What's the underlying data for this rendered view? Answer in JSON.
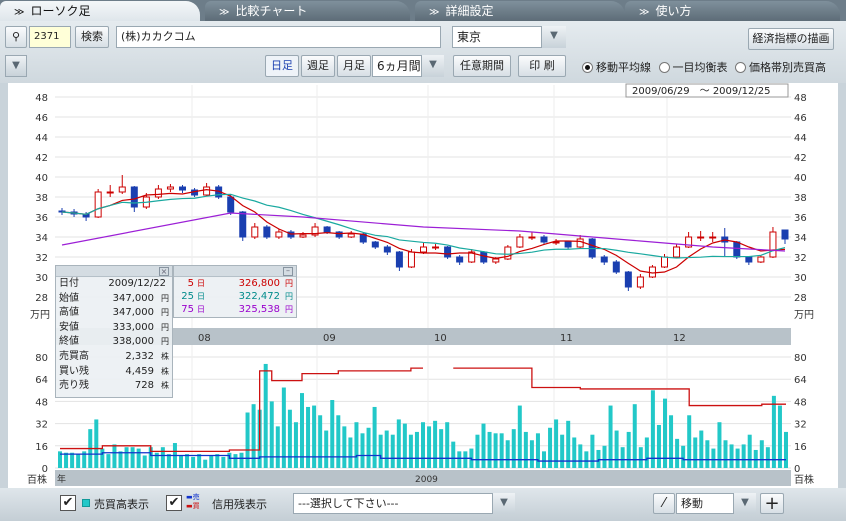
{
  "tabs": [
    {
      "label": "ローソク足",
      "active": true
    },
    {
      "label": "比較チャート"
    },
    {
      "label": "詳細設定"
    },
    {
      "label": "使い方"
    }
  ],
  "search": {
    "code": "2371",
    "button": "検索",
    "company": "(株)カカクコム",
    "market": "東京",
    "econ_button": "経済指標の描画"
  },
  "period": {
    "daily": "日足",
    "weekly": "週足",
    "monthly": "月足",
    "range": "6ヵ月間",
    "custom": "任意期間",
    "print": "印 刷"
  },
  "overlay": {
    "options": [
      "移動平均線",
      "一目均衡表",
      "価格帯別売買高"
    ],
    "selected": 0
  },
  "date_range": "2009/06/29　～ 2009/12/25",
  "price_axis": {
    "ticks": [
      48,
      46,
      44,
      42,
      40,
      38,
      36,
      34,
      32,
      30,
      28
    ],
    "unit": "万円"
  },
  "volume_axis": {
    "ticks": [
      80,
      64,
      48,
      32,
      16,
      0
    ],
    "unit": "百株"
  },
  "months": [
    "08",
    "09",
    "10",
    "11",
    "12"
  ],
  "year_label": "年",
  "year": "2009",
  "info": {
    "rows": [
      [
        "日付",
        "2009/12/22",
        ""
      ],
      [
        "始値",
        "347,000",
        "円"
      ],
      [
        "高値",
        "347,000",
        "円"
      ],
      [
        "安値",
        "333,000",
        "円"
      ],
      [
        "終値",
        "338,000",
        "円"
      ],
      [
        "売買高",
        "2,332",
        "株"
      ],
      [
        "買い残",
        "4,459",
        "株"
      ],
      [
        "売り残",
        "728",
        "株"
      ]
    ]
  },
  "ma": {
    "rows": [
      {
        "n": "5",
        "u": "日",
        "v": "326,800",
        "yen": "円",
        "color": "#cc0000"
      },
      {
        "n": "25",
        "u": "日",
        "v": "322,472",
        "yen": "円",
        "color": "#008b8b"
      },
      {
        "n": "75",
        "u": "日",
        "v": "325,538",
        "yen": "円",
        "color": "#9900cc"
      }
    ]
  },
  "bottom": {
    "volume_toggle": "売買高表示",
    "credit_toggle": "信用残表示",
    "credit_sell": "売",
    "credit_buy": "買",
    "indicator_select": "---選択して下さい---",
    "tool_select": "移動"
  },
  "colors": {
    "ma5": "#cc0000",
    "ma25": "#1aa9a0",
    "ma75": "#9c1fd6",
    "up": "#ffffff",
    "down": "#1a3fb0",
    "volume": "#22c8c8",
    "buy_credit": "#cc1111",
    "sell_credit": "#1133cc"
  },
  "chart_data": {
    "type": "candlestick",
    "candles": [
      [
        36.6,
        36.9,
        36.2,
        36.5
      ],
      [
        36.5,
        36.8,
        36.0,
        36.3
      ],
      [
        36.3,
        36.5,
        35.6,
        36.0
      ],
      [
        36.0,
        38.8,
        35.9,
        38.5
      ],
      [
        38.5,
        39.2,
        38.0,
        38.5
      ],
      [
        38.5,
        40.2,
        38.3,
        39.0
      ],
      [
        39.0,
        39.1,
        36.5,
        37.0
      ],
      [
        37.0,
        38.4,
        36.8,
        38.0
      ],
      [
        38.0,
        39.2,
        37.8,
        38.8
      ],
      [
        38.8,
        39.3,
        38.5,
        39.0
      ],
      [
        39.0,
        39.2,
        38.4,
        38.7
      ],
      [
        38.7,
        38.9,
        38.0,
        38.2
      ],
      [
        38.2,
        39.4,
        38.1,
        39.0
      ],
      [
        39.0,
        39.2,
        37.8,
        38.0
      ],
      [
        38.0,
        38.2,
        36.2,
        36.5
      ],
      [
        36.5,
        36.6,
        33.6,
        34.0
      ],
      [
        34.0,
        35.4,
        33.8,
        35.0
      ],
      [
        35.0,
        35.2,
        33.8,
        34.0
      ],
      [
        34.0,
        34.8,
        33.8,
        34.5
      ],
      [
        34.5,
        34.7,
        33.8,
        34.0
      ],
      [
        34.0,
        34.5,
        33.9,
        34.2
      ],
      [
        34.2,
        35.4,
        34.0,
        35.0
      ],
      [
        35.0,
        35.1,
        34.3,
        34.5
      ],
      [
        34.5,
        34.6,
        33.8,
        34.0
      ],
      [
        34.0,
        34.6,
        33.9,
        34.3
      ],
      [
        34.3,
        34.4,
        33.3,
        33.5
      ],
      [
        33.5,
        33.6,
        32.8,
        33.0
      ],
      [
        33.0,
        33.2,
        32.2,
        32.5
      ],
      [
        32.5,
        32.6,
        30.6,
        31.0
      ],
      [
        31.0,
        32.8,
        30.9,
        32.5
      ],
      [
        32.5,
        33.4,
        32.3,
        33.0
      ],
      [
        33.0,
        33.3,
        32.7,
        33.0
      ],
      [
        33.0,
        33.1,
        31.8,
        32.0
      ],
      [
        32.0,
        32.2,
        31.2,
        31.5
      ],
      [
        31.5,
        32.8,
        31.4,
        32.5
      ],
      [
        32.5,
        32.6,
        31.3,
        31.5
      ],
      [
        31.5,
        32.0,
        31.3,
        31.8
      ],
      [
        31.8,
        33.2,
        31.7,
        33.0
      ],
      [
        33.0,
        34.3,
        32.9,
        34.0
      ],
      [
        34.0,
        34.5,
        33.7,
        34.0
      ],
      [
        34.0,
        34.2,
        33.3,
        33.5
      ],
      [
        33.5,
        33.8,
        33.2,
        33.5
      ],
      [
        33.5,
        33.6,
        32.8,
        33.0
      ],
      [
        33.0,
        34.2,
        32.9,
        33.8
      ],
      [
        33.8,
        33.9,
        31.8,
        32.0
      ],
      [
        32.0,
        32.2,
        31.2,
        31.5
      ],
      [
        31.5,
        31.7,
        30.3,
        30.5
      ],
      [
        30.5,
        30.6,
        28.6,
        29.0
      ],
      [
        29.0,
        30.3,
        28.8,
        30.0
      ],
      [
        30.0,
        31.2,
        29.9,
        31.0
      ],
      [
        31.0,
        32.3,
        30.9,
        32.0
      ],
      [
        32.0,
        33.3,
        31.9,
        33.0
      ],
      [
        33.0,
        34.5,
        32.9,
        34.0
      ],
      [
        34.0,
        34.6,
        33.6,
        34.0
      ],
      [
        34.0,
        34.5,
        33.5,
        34.0
      ],
      [
        34.0,
        34.9,
        32.0,
        33.5
      ],
      [
        33.5,
        33.6,
        31.8,
        32.0
      ],
      [
        32.0,
        32.1,
        31.2,
        31.5
      ],
      [
        31.5,
        32.2,
        31.4,
        32.0
      ],
      [
        32.0,
        35.0,
        31.9,
        34.5
      ],
      [
        34.7,
        34.7,
        33.3,
        33.8
      ]
    ],
    "ma75": [
      [
        0,
        33.2
      ],
      [
        14,
        36.4
      ],
      [
        20,
        36.0
      ],
      [
        30,
        35.0
      ],
      [
        38,
        34.6
      ],
      [
        48,
        33.6
      ],
      [
        54,
        33.0
      ],
      [
        60,
        32.6
      ]
    ],
    "volume": [
      12,
      11,
      11,
      10,
      12,
      28,
      35,
      14,
      10,
      17,
      12,
      15,
      15,
      14,
      9,
      15,
      11,
      15,
      10,
      18,
      9,
      10,
      8,
      10,
      6,
      9,
      10,
      8,
      11,
      10,
      11,
      40,
      46,
      42,
      75,
      48,
      30,
      58,
      42,
      33,
      54,
      44,
      45,
      38,
      27,
      49,
      38,
      30,
      22,
      33,
      25,
      29,
      44,
      24,
      27,
      24,
      35,
      32,
      24,
      26,
      33,
      30,
      34,
      28,
      33,
      19,
      12,
      12,
      14,
      24,
      32,
      26,
      25,
      25,
      20,
      28,
      45,
      26,
      20,
      25,
      12,
      29,
      35,
      24,
      34,
      22,
      17,
      12,
      24,
      13,
      16,
      45,
      27,
      15,
      26,
      46,
      15,
      22,
      56,
      31,
      50,
      38,
      21,
      16,
      38,
      22,
      27,
      20,
      14,
      33,
      20,
      17,
      14,
      17,
      24,
      13,
      20,
      15,
      52,
      45,
      26
    ],
    "buy_credit": [
      [
        0,
        14
      ],
      [
        7,
        16
      ],
      [
        15,
        12
      ],
      [
        28,
        13
      ],
      [
        33,
        70
      ],
      [
        35,
        63
      ],
      [
        40,
        68
      ],
      [
        46,
        70
      ],
      [
        53,
        70
      ],
      [
        58,
        72
      ],
      [
        60,
        null
      ],
      [
        65,
        72
      ],
      [
        73,
        72
      ],
      [
        78,
        58
      ],
      [
        86,
        57
      ],
      [
        104,
        45
      ],
      [
        116,
        46
      ]
    ],
    "sell_credit": [
      [
        0,
        10
      ],
      [
        7,
        11
      ],
      [
        15,
        9
      ],
      [
        28,
        7
      ],
      [
        33,
        8
      ],
      [
        49,
        9
      ],
      [
        53,
        7
      ],
      [
        68,
        6
      ],
      [
        79,
        5
      ],
      [
        89,
        6
      ],
      [
        97,
        7
      ],
      [
        103,
        6
      ],
      [
        120,
        6
      ]
    ]
  }
}
